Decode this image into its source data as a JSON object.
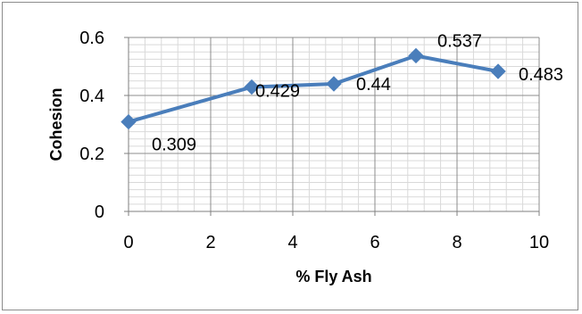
{
  "chart_data": {
    "type": "line",
    "title": "",
    "xlabel": "% Fly Ash",
    "ylabel": "Cohesion",
    "xlim": [
      0,
      10
    ],
    "ylim": [
      0,
      0.6
    ],
    "x_ticks": [
      "0",
      "2",
      "4",
      "6",
      "8",
      "10"
    ],
    "y_ticks": [
      "0",
      "0.2",
      "0.4",
      "0.6"
    ],
    "grid": true,
    "series": [
      {
        "x": [
          0,
          3,
          5,
          7,
          9
        ],
        "y": [
          0.309,
          0.429,
          0.44,
          0.537,
          0.483
        ],
        "labels": [
          "0.309",
          "0.429",
          "0.44",
          "0.537",
          "0.483"
        ],
        "color": "#4a7ebb",
        "marker": "diamond"
      }
    ]
  }
}
